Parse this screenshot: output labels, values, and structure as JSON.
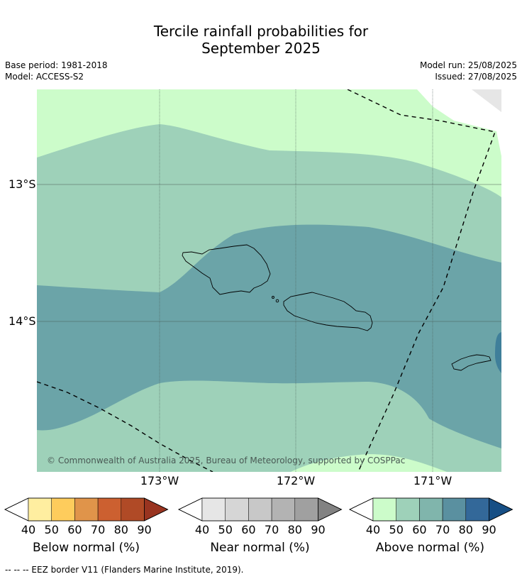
{
  "title_line1": "Tercile rainfall probabilities for",
  "title_line2": "September 2025",
  "base_period": "Base period: 1981-2018",
  "model": "Model: ACCESS-S2",
  "model_run": "Model run: 25/08/2025",
  "issued": "Issued: 27/08/2025",
  "lat_labels": [
    "13°S",
    "14°S"
  ],
  "lon_labels": [
    "173°W",
    "172°W",
    "171°W"
  ],
  "copyright": "© Commonwealth of Australia 2025, Bureau of Meteorology, supported by COSPPac",
  "colorbars": [
    {
      "label": "Below normal (%)",
      "ticks": [
        "40",
        "50",
        "60",
        "70",
        "80",
        "90"
      ],
      "colors": [
        "#ffeea0",
        "#fecc5c",
        "#e0944a",
        "#cc6030",
        "#b04a26",
        "#993420"
      ]
    },
    {
      "label": "Near normal (%)",
      "ticks": [
        "40",
        "50",
        "60",
        "70",
        "80",
        "90"
      ],
      "colors": [
        "#e6e6e6",
        "#d6d6d6",
        "#c8c8c8",
        "#b3b3b3",
        "#a0a0a0",
        "#828282"
      ]
    },
    {
      "label": "Above normal (%)",
      "ticks": [
        "40",
        "50",
        "60",
        "70",
        "80",
        "90"
      ],
      "colors": [
        "#ccfcca",
        "#9ed1b9",
        "#80b5ac",
        "#5a90a0",
        "#336899",
        "#174f85"
      ]
    }
  ],
  "region_colors": {
    "above_40_50": "#ccfcca",
    "above_50_60": "#9ed1b9",
    "above_60_70": "#6ba4a8",
    "above_70_80": "#3f7f9a",
    "no_data": "#e6e6e6"
  },
  "footer": "--  --  -- EEZ border V11 (Flanders Marine Institute, 2019)."
}
